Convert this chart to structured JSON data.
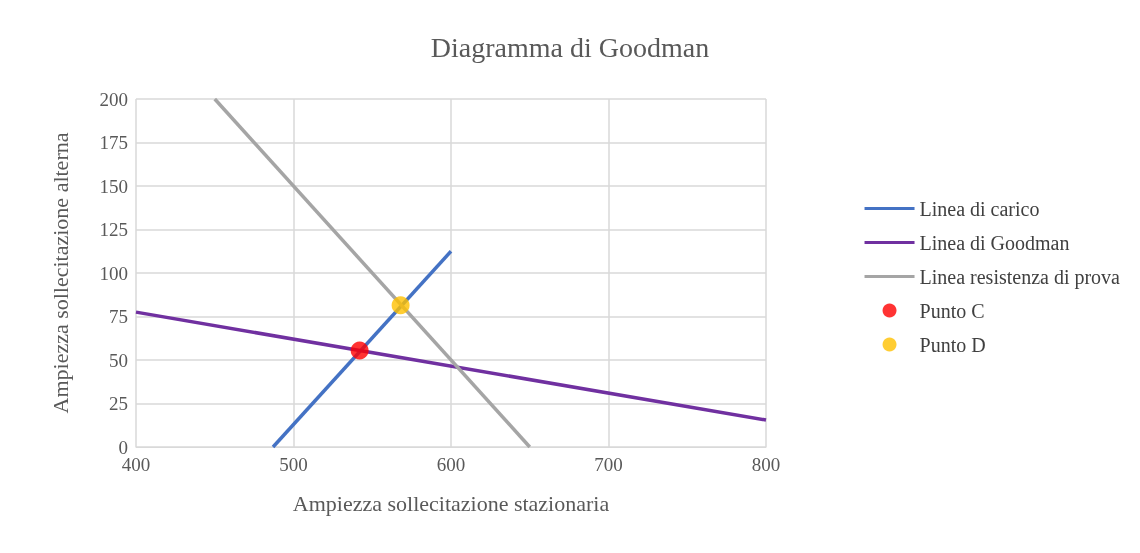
{
  "chart_data": {
    "type": "line",
    "title": "Diagramma di Goodman",
    "xlabel": "Ampiezza sollecitazione stazionaria",
    "ylabel": "Ampiezza sollecitazione alterna",
    "series": [
      {
        "name": "Linea di carico",
        "color": "#4472c4",
        "marker": "none",
        "x": [
          487,
          600
        ],
        "values": [
          0,
          112.5
        ]
      },
      {
        "name": "Linea di Goodman",
        "color": "#7030a0",
        "marker": "none",
        "x": [
          400,
          800
        ],
        "values": [
          77.5,
          15.5
        ]
      },
      {
        "name": "Linea resistenza di prova",
        "color": "#a5a5a5",
        "marker": "none",
        "x": [
          450,
          650
        ],
        "values": [
          200,
          0
        ]
      },
      {
        "name": "Punto C",
        "type": "scatter",
        "marker": "circle",
        "color": "#ff0000",
        "x": [
          542
        ],
        "values": [
          55.5
        ]
      },
      {
        "name": "Punto D",
        "type": "scatter",
        "marker": "circle",
        "color": "#ffc000",
        "x": [
          568
        ],
        "values": [
          81.5
        ]
      }
    ],
    "xlim": [
      400,
      800
    ],
    "xticks": [
      400,
      500,
      600,
      700,
      800
    ],
    "ylim": [
      0,
      200
    ],
    "yticks": [
      0,
      25,
      50,
      75,
      100,
      125,
      150,
      175,
      200
    ],
    "grid": true,
    "legend": "right",
    "line_style": "solid"
  }
}
